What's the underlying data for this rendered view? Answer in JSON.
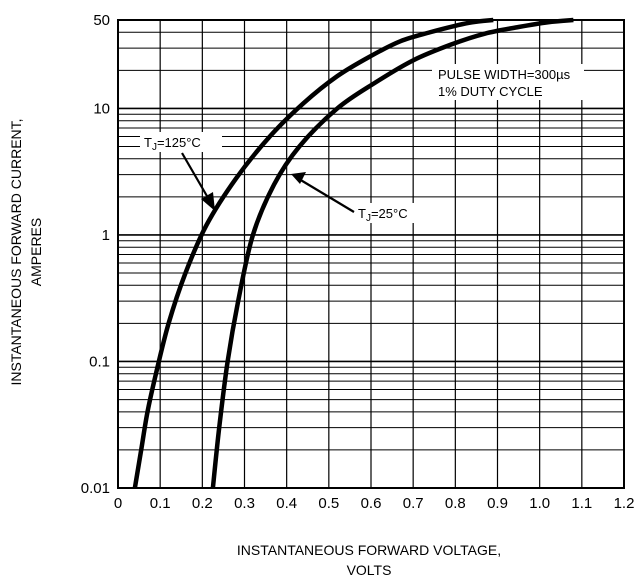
{
  "chart_data": {
    "type": "line",
    "xlabel": "INSTANTANEOUS FORWARD VOLTAGE, VOLTS",
    "xlabel_lines": [
      "INSTANTANEOUS FORWARD VOLTAGE,",
      "VOLTS"
    ],
    "ylabel": "INSTANTANEOUS FORWARD CURRENT, AMPERES",
    "ylabel_lines": [
      "INSTANTANEOUS FORWARD CURRENT,",
      "AMPERES"
    ],
    "xlim": [
      0,
      1.2
    ],
    "ylim": [
      0.01,
      50
    ],
    "yscale": "log",
    "grid": true,
    "x_ticks": [
      "0",
      "0.1",
      "0.2",
      "0.3",
      "0.4",
      "0.5",
      "0.6",
      "0.7",
      "0.8",
      "0.9",
      "1.0",
      "1.1",
      "1.2"
    ],
    "y_ticks": [
      "0.01",
      "0.1",
      "1",
      "10",
      "50"
    ],
    "series": [
      {
        "name": "TJ=125°C",
        "label_main": "T",
        "label_sub": "J",
        "label_rest": "=125°C",
        "x": [
          0.04,
          0.055,
          0.07,
          0.09,
          0.12,
          0.16,
          0.21,
          0.28,
          0.36,
          0.44,
          0.52,
          0.6,
          0.67,
          0.74,
          0.8,
          0.84,
          0.89
        ],
        "y": [
          0.01,
          0.02,
          0.04,
          0.08,
          0.2,
          0.5,
          1.2,
          2.8,
          6,
          11,
          18,
          26,
          34,
          40,
          45,
          48,
          50
        ]
      },
      {
        "name": "TJ=25°C",
        "label_main": "T",
        "label_sub": "J",
        "label_rest": "=25°C",
        "x": [
          0.225,
          0.24,
          0.26,
          0.285,
          0.32,
          0.37,
          0.43,
          0.52,
          0.61,
          0.7,
          0.79,
          0.87,
          0.95,
          1.02,
          1.08
        ],
        "y": [
          0.01,
          0.03,
          0.1,
          0.3,
          1,
          2.5,
          5,
          10,
          16,
          24,
          32,
          39,
          44,
          48,
          50
        ]
      }
    ],
    "annotations": [
      "PULSE WIDTH=300µs",
      "1% DUTY CYCLE"
    ],
    "colors": {
      "line": "#000000",
      "grid": "#000000",
      "background": "#ffffff"
    }
  }
}
